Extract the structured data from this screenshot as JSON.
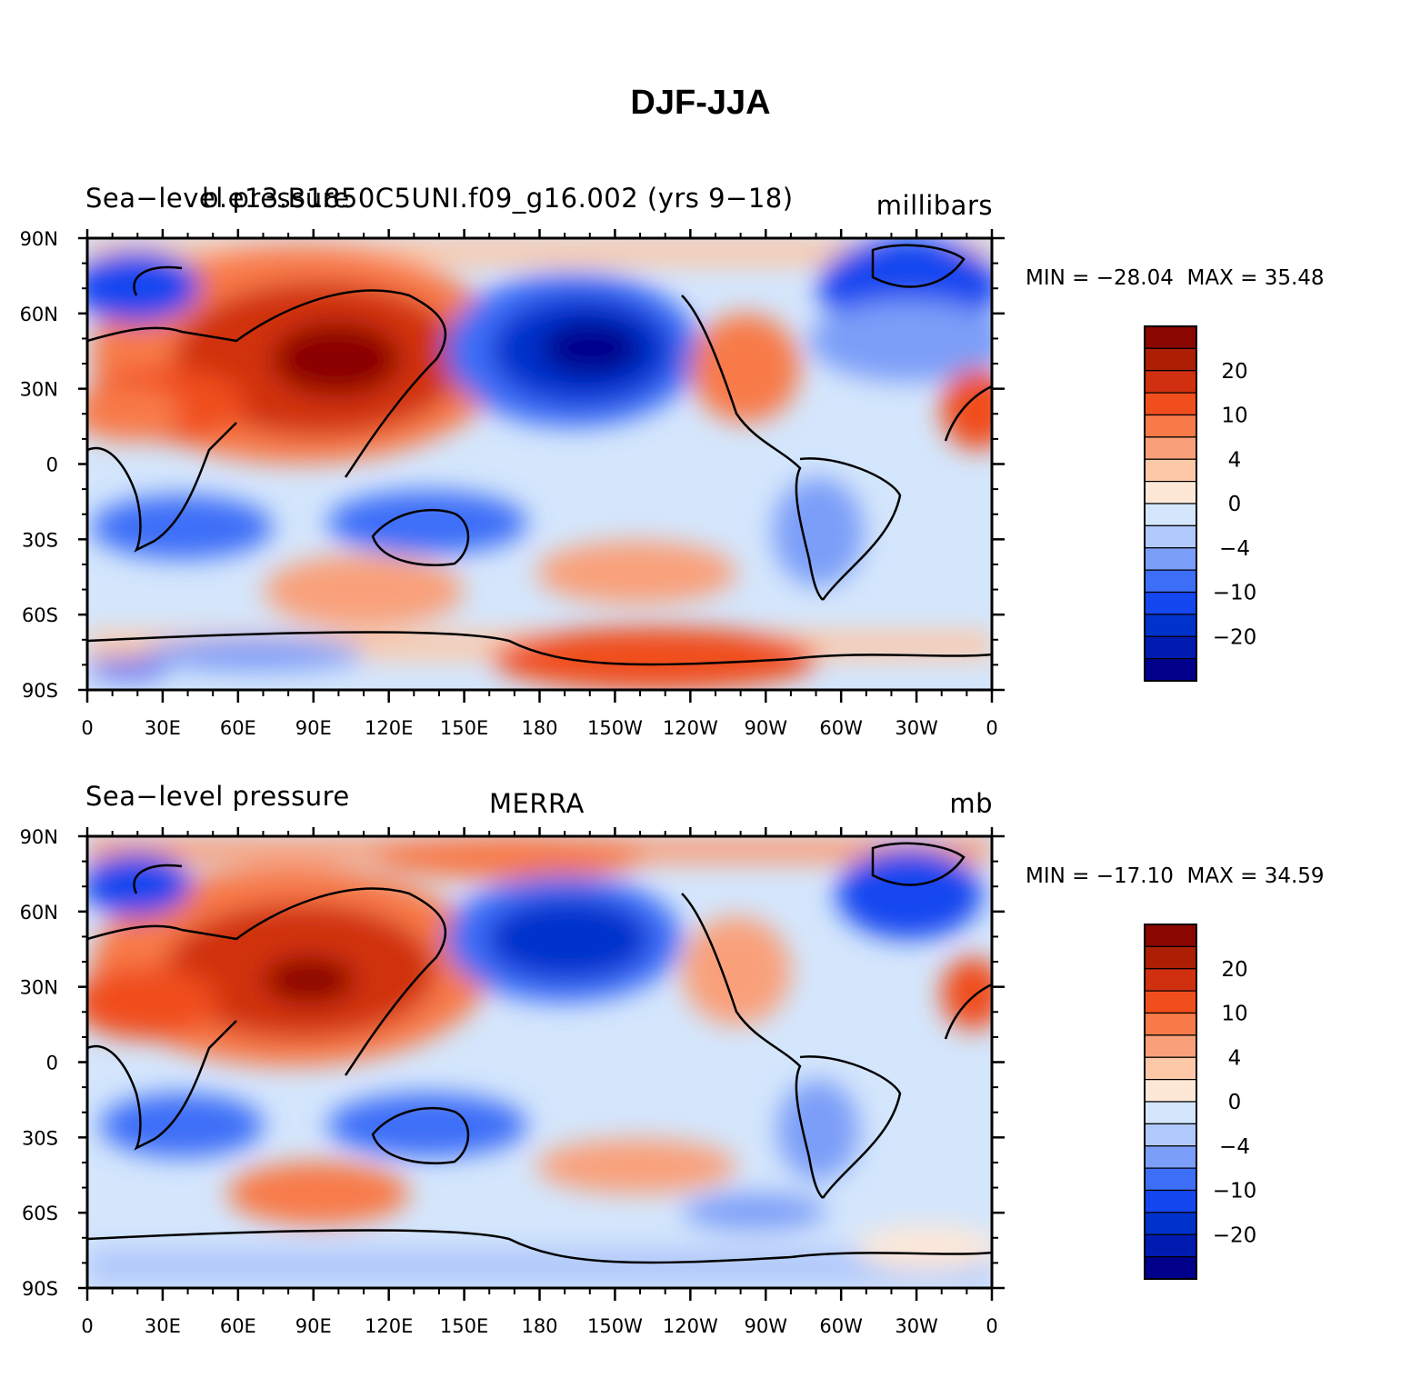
{
  "title": "DJF-JJA",
  "colorbar_colors": [
    "#00008b",
    "#001cb0",
    "#0033cc",
    "#1447f0",
    "#3c6ef8",
    "#7b9ef8",
    "#b0c8fb",
    "#d4e6fc",
    "#fde8d8",
    "#fcc8a8",
    "#f9a07a",
    "#f87a48",
    "#f04e1c",
    "#d03010",
    "#ad1f05",
    "#8a0600"
  ],
  "panels": [
    {
      "id": "top",
      "left_label": "Sea−level pressure",
      "center_label": "b.e13.B1850C5UNI.f09_g16.002 (yrs 9−18)",
      "right_label": "millibars",
      "min_label": "MIN = −28.04",
      "max_label": "MAX =   35.48",
      "colorbar_labels": [
        "20",
        "10",
        "4",
        "0",
        "−4",
        "−10",
        "−20"
      ]
    },
    {
      "id": "bottom",
      "left_label": "Sea−level pressure",
      "center_label": "MERRA",
      "right_label": "mb",
      "min_label": "MIN = −17.10",
      "max_label": "MAX =   34.59",
      "colorbar_labels": [
        "20",
        "10",
        "4",
        "0",
        "−4",
        "−10",
        "−20"
      ]
    }
  ],
  "lat_ticks": [
    "90N",
    "60N",
    "30N",
    "0",
    "30S",
    "60S",
    "90S"
  ],
  "lon_ticks": [
    "0",
    "30E",
    "60E",
    "90E",
    "120E",
    "150E",
    "180",
    "150W",
    "120W",
    "90W",
    "60W",
    "30W",
    "0"
  ]
}
